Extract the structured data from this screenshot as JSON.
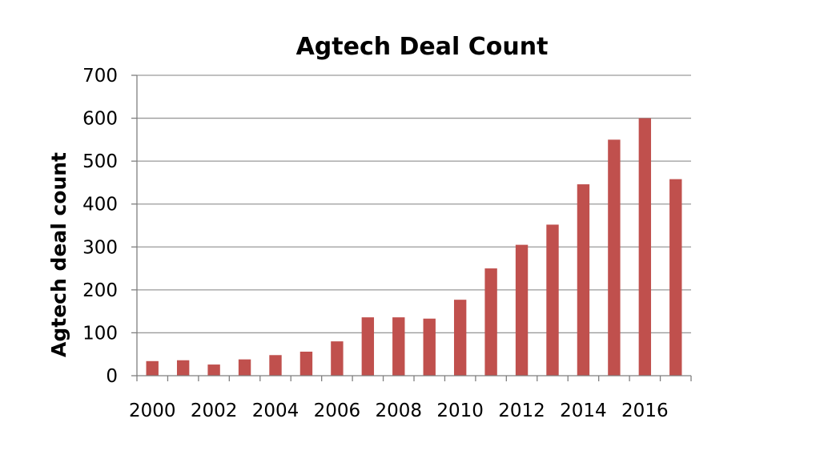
{
  "chart_data": {
    "type": "bar",
    "title": "Agtech Deal Count",
    "xlabel": "",
    "ylabel": "Agtech deal count",
    "categories": [
      "2000",
      "2001",
      "2002",
      "2003",
      "2004",
      "2005",
      "2006",
      "2007",
      "2008",
      "2009",
      "2010",
      "2011",
      "2012",
      "2013",
      "2014",
      "2015",
      "2016",
      "2017"
    ],
    "x_tick_labels": [
      "2000",
      "2002",
      "2004",
      "2006",
      "2008",
      "2010",
      "2012",
      "2014",
      "2016"
    ],
    "values": [
      34,
      36,
      26,
      38,
      48,
      56,
      80,
      136,
      136,
      133,
      177,
      250,
      305,
      352,
      446,
      550,
      600,
      458
    ],
    "ylim": [
      0,
      700
    ],
    "y_ticks": [
      0,
      100,
      200,
      300,
      400,
      500,
      600,
      700
    ],
    "grid": true,
    "legend": "none",
    "bar_color": "#c0504d"
  }
}
